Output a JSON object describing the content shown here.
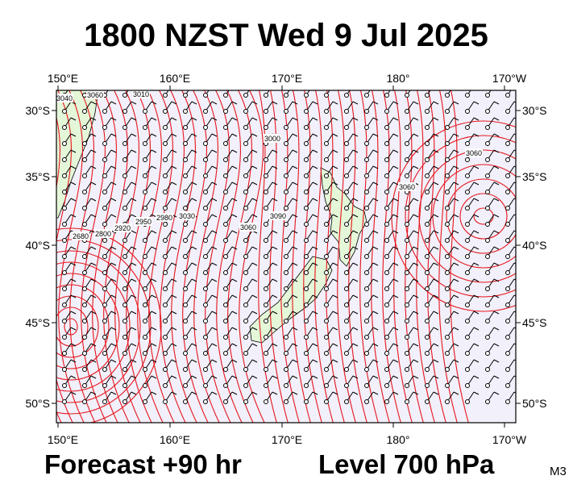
{
  "header": {
    "title": "1800 NZST Wed 9 Jul 2025"
  },
  "map": {
    "lon_labels": [
      "150°E",
      "160°E",
      "170°E",
      "180°",
      "170°W"
    ],
    "lat_labels": [
      "30°S",
      "35°S",
      "40°S",
      "45°S",
      "50°S"
    ],
    "contour_labels": [
      "3040",
      "3060",
      "3010",
      "3000",
      "3060",
      "2680",
      "2800",
      "2920",
      "2950",
      "2980",
      "3030",
      "3060",
      "3090",
      "3060"
    ]
  },
  "footer": {
    "forecast": "Forecast +90 hr",
    "level": "Level 700 hPa",
    "code": "M3"
  }
}
